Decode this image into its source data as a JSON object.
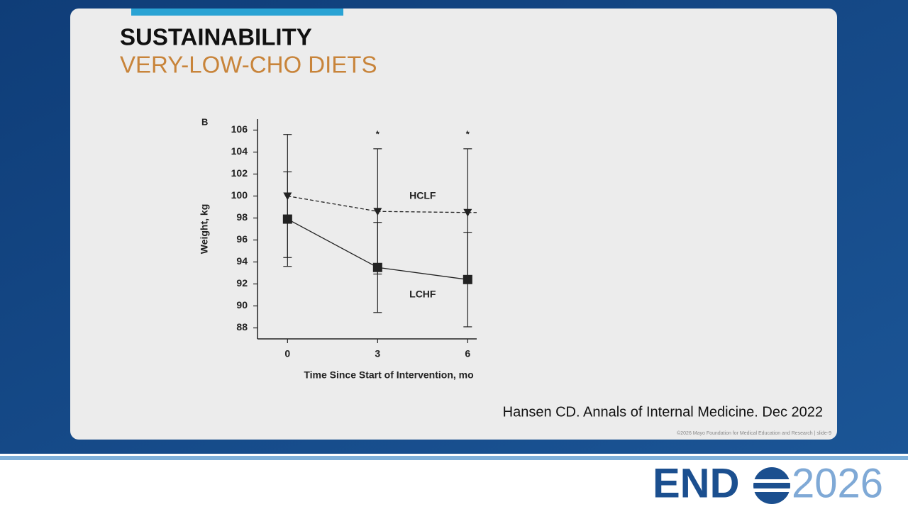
{
  "slide": {
    "title": "SUSTAINABILITY",
    "subtitle": "VERY-LOW-CHO DIETS",
    "citation": "Hansen CD. Annals of Internal Medicine. Dec 2022",
    "footer": "©2026 Mayo Foundation for Medical Education and Research  |  slide-9",
    "logo": {
      "left": "END",
      "right": "2026"
    }
  },
  "chart_data": {
    "type": "line",
    "panel_label": "B",
    "x": [
      0,
      3,
      6
    ],
    "xlim": [
      -1,
      6.3
    ],
    "xticks": [
      0,
      3,
      6
    ],
    "ylim": [
      87,
      107
    ],
    "yticks": [
      88,
      90,
      92,
      94,
      96,
      98,
      100,
      102,
      104,
      106
    ],
    "xlabel": "Time Since Start of Intervention, mo",
    "ylabel": "Weight, kg",
    "series": [
      {
        "name": "HCLF",
        "color": "#222222",
        "marker": "triangle-down",
        "line_style": "dashed",
        "values": [
          100,
          98.6,
          98.5
        ],
        "errors": [
          5.6,
          5.7,
          5.8
        ]
      },
      {
        "name": "LCHF",
        "color": "#222222",
        "marker": "square",
        "line_style": "solid",
        "values": [
          97.9,
          93.5,
          92.4
        ],
        "errors": [
          4.3,
          4.1,
          4.3
        ]
      }
    ],
    "significance_markers": [
      {
        "x": 3,
        "label": "*"
      },
      {
        "x": 6,
        "label": "*"
      }
    ]
  }
}
